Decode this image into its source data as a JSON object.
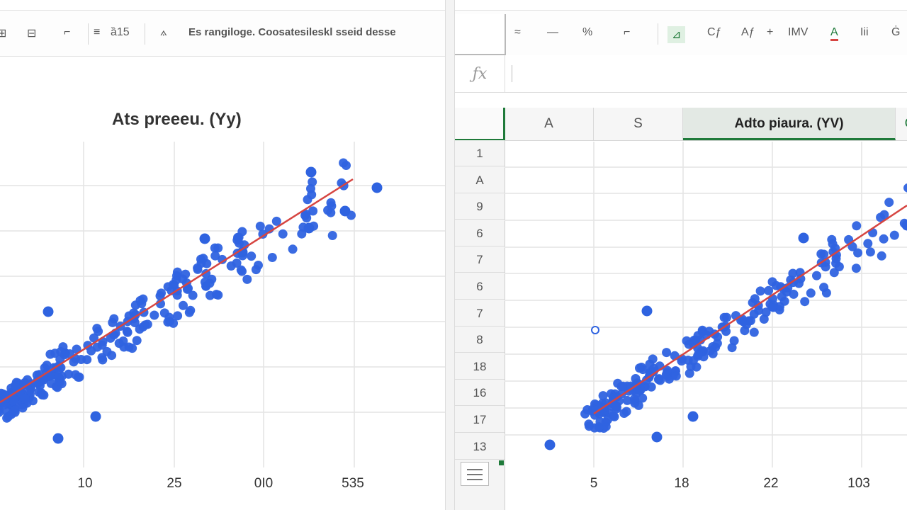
{
  "left_pane": {
    "toolbar": {
      "items": [
        "⊞",
        "⊟",
        "⌐",
        "≡",
        "ȁ15",
        "⟑"
      ],
      "text": "Es rangiloge. Coosatesileskl sseid desse"
    },
    "chart": {
      "title": "Ats preeeu. (Yy)",
      "x_ticks": [
        "10",
        "25",
        "0I0",
        "535"
      ]
    }
  },
  "right_pane": {
    "toolbar": {
      "items": [
        "≈",
        "—",
        "%",
        "⌐",
        "⊿",
        "Cƒ",
        "Aƒ",
        "+",
        "IMV",
        "A",
        "Iii",
        "Ġ"
      ]
    },
    "formula_bar": {
      "fx_label": "ƒx",
      "value": ""
    },
    "columns": [
      "A",
      "S",
      "Adto piaura. (YV)",
      "C"
    ],
    "rows": [
      "1",
      "A",
      "9",
      "6",
      "7",
      "6",
      "7",
      "8",
      "18",
      "16",
      "17",
      "13"
    ],
    "chart": {
      "x_ticks": [
        "5",
        "18",
        "22",
        "103"
      ]
    }
  },
  "colors": {
    "accent_green": "#1f7a3a",
    "point_blue": "#2f63e0",
    "trend_red": "#d64541",
    "grid": "#e4e4e4"
  },
  "chart_data": [
    {
      "type": "scatter",
      "title": "Ats preeeu. (Yy)",
      "trendline": {
        "from": [
          0,
          0
        ],
        "to": [
          39,
          0
        ]
      },
      "x": [],
      "y": []
    },
    {
      "type": "scatter",
      "title": "Adto piaura. (YV)",
      "x": [],
      "y": []
    }
  ]
}
